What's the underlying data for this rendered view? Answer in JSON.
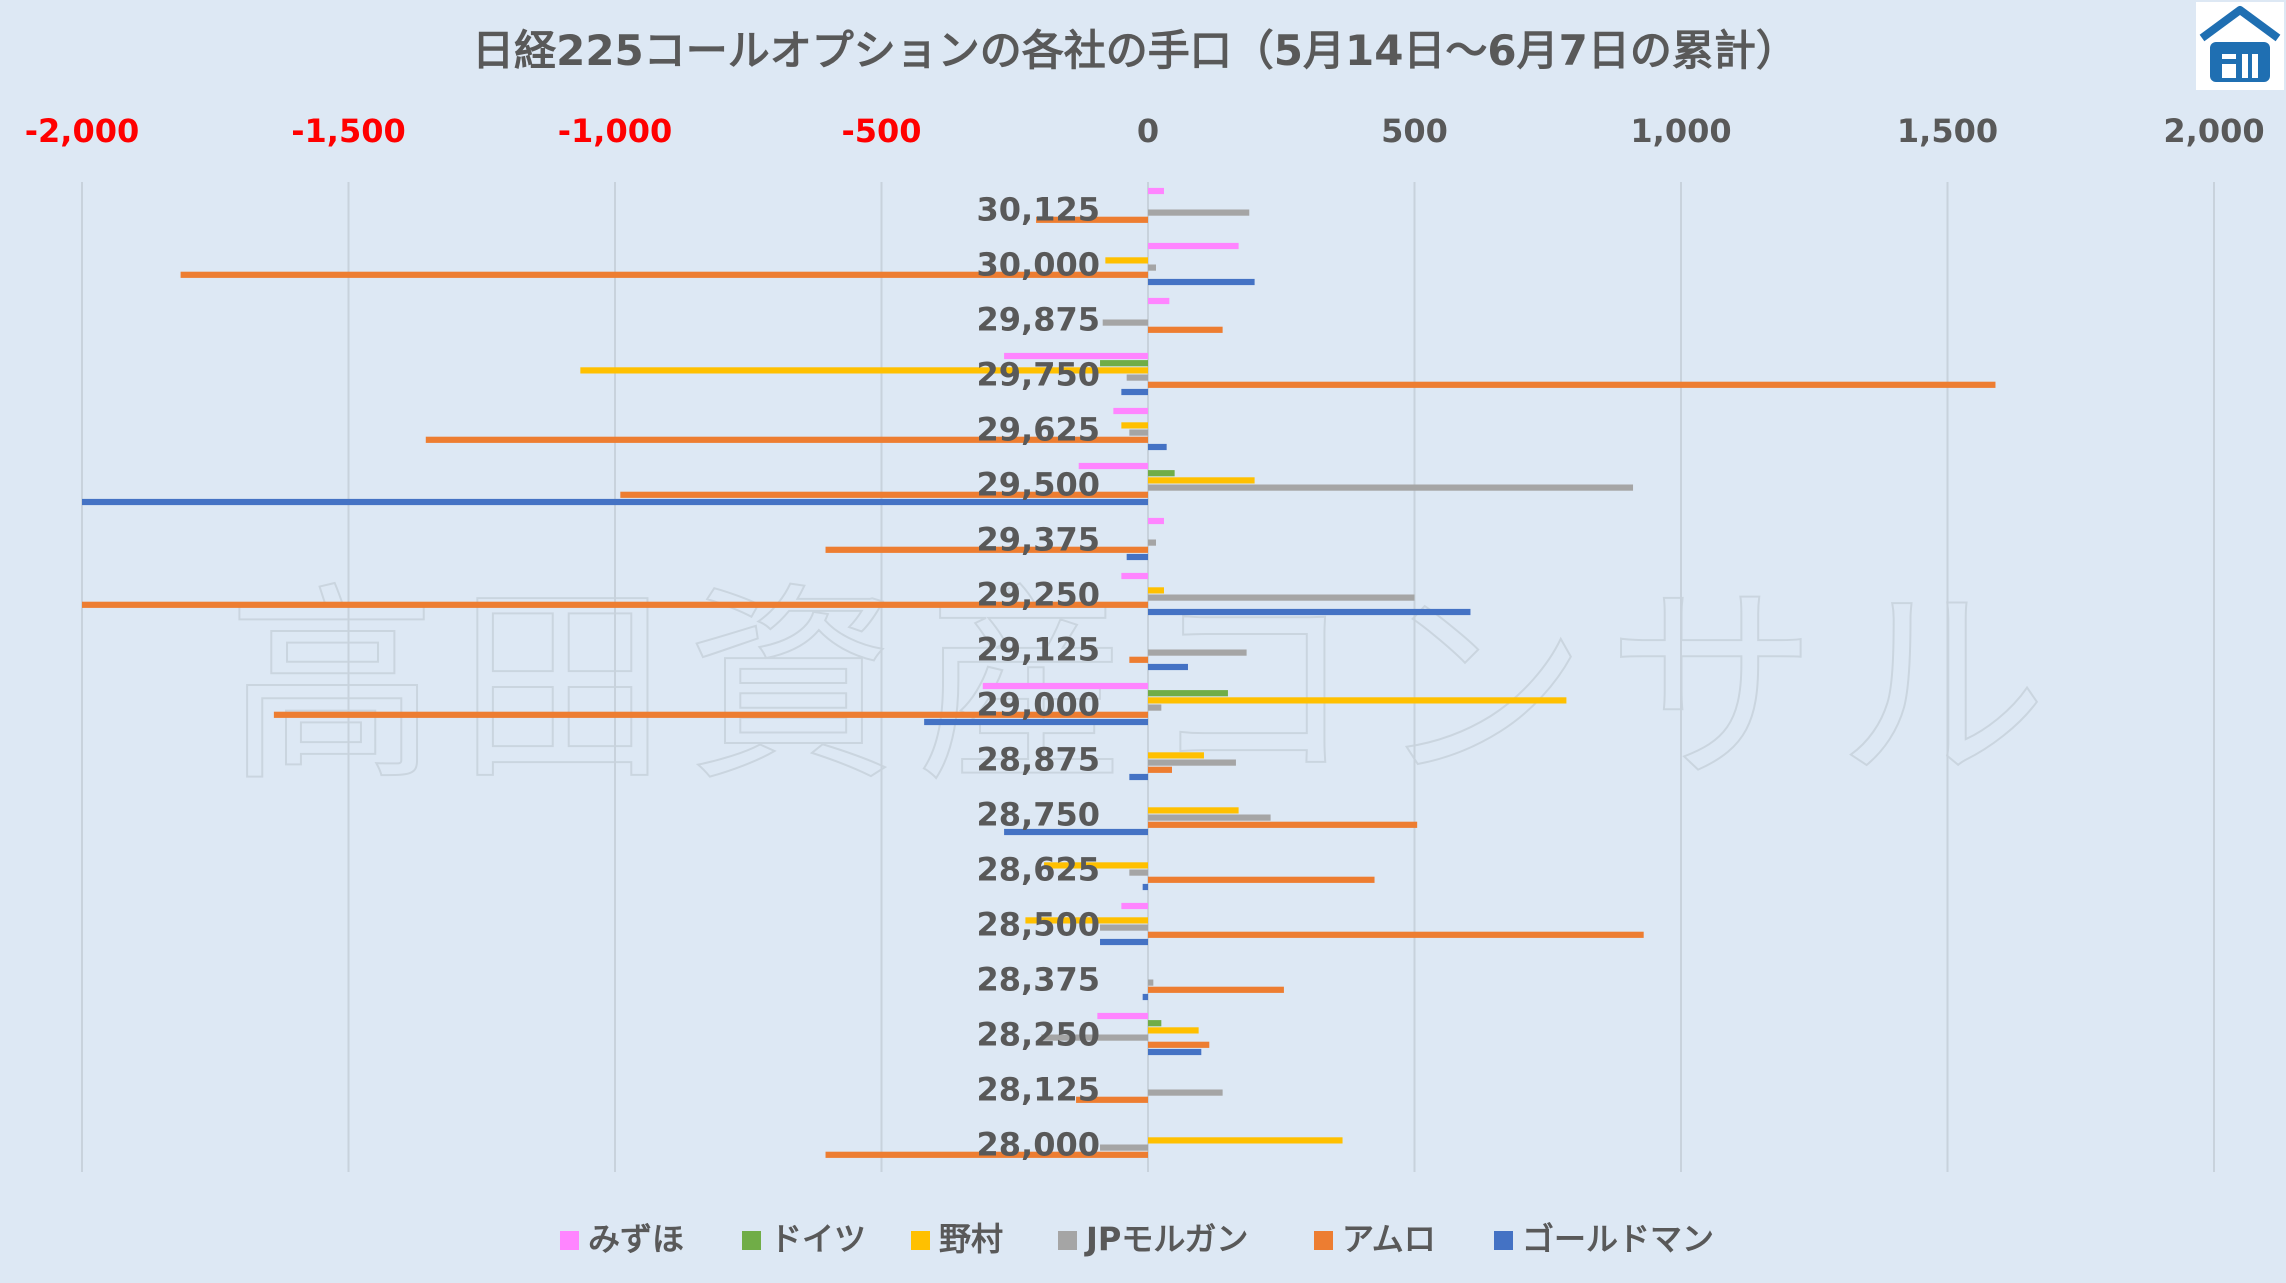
{
  "watermark": "高田資産コンサル",
  "colors": {
    "background": "#dde8f4",
    "gridline": "#c8d2dc",
    "negative_tick": "#ff0000",
    "text": "#595959",
    "logo": "#1f6fb2"
  },
  "logo_icon": "house-roof-icon",
  "chart_data": {
    "type": "bar",
    "orientation": "horizontal",
    "title": "日経225コールオプションの各社の手口（5月14日～6月7日の累計）",
    "xlim": [
      -2000,
      2000
    ],
    "xticks": [
      -2000,
      -1500,
      -1000,
      -500,
      0,
      500,
      1000,
      1500,
      2000
    ],
    "xtick_labels": [
      "-2,000",
      "-1,500",
      "-1,000",
      "-500",
      "0",
      "500",
      "1,000",
      "1,500",
      "2,000"
    ],
    "grid": true,
    "legend_position": "bottom",
    "categories": [
      "30,125",
      "30,000",
      "29,875",
      "29,750",
      "29,625",
      "29,500",
      "29,375",
      "29,250",
      "29,125",
      "29,000",
      "28,875",
      "28,750",
      "28,625",
      "28,500",
      "28,375",
      "28,250",
      "28,125",
      "28,000"
    ],
    "series": [
      {
        "name": "みずほ",
        "color": "#ff85ff",
        "values": [
          30,
          170,
          40,
          -270,
          -65,
          -130,
          30,
          -50,
          0,
          -310,
          0,
          0,
          0,
          -50,
          0,
          -95,
          0,
          0
        ]
      },
      {
        "name": "ドイツ",
        "color": "#70ad47",
        "values": [
          0,
          0,
          0,
          -90,
          0,
          50,
          0,
          0,
          0,
          150,
          0,
          0,
          0,
          0,
          0,
          25,
          0,
          0
        ]
      },
      {
        "name": "野村",
        "color": "#ffc000",
        "values": [
          0,
          -80,
          0,
          -1065,
          -50,
          200,
          0,
          30,
          0,
          785,
          105,
          170,
          -195,
          -230,
          0,
          95,
          0,
          365
        ]
      },
      {
        "name": "JPモルガン",
        "color": "#a5a5a5",
        "values": [
          190,
          15,
          -85,
          -40,
          -35,
          910,
          15,
          500,
          185,
          25,
          165,
          230,
          -35,
          -90,
          10,
          -200,
          140,
          -90
        ]
      },
      {
        "name": "アムロ",
        "color": "#ed7d31",
        "values": [
          -210,
          -1815,
          140,
          1590,
          -1355,
          -990,
          -605,
          -2000,
          -35,
          -1640,
          45,
          505,
          425,
          930,
          255,
          115,
          -135,
          -605
        ]
      },
      {
        "name": "ゴールドマン",
        "color": "#4472c4",
        "values": [
          0,
          200,
          0,
          -50,
          35,
          -2000,
          -40,
          605,
          75,
          -420,
          -35,
          -270,
          -10,
          -90,
          -10,
          100,
          0,
          0
        ]
      }
    ]
  }
}
